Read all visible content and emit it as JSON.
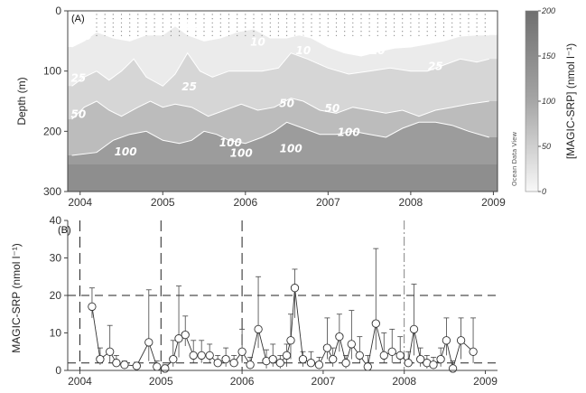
{
  "panel_a": {
    "label": "(A)",
    "ylabel": "Depth (m)",
    "y_ticks": [
      "0",
      "100",
      "200",
      "300"
    ],
    "x_ticks": [
      "2004",
      "2005",
      "2006",
      "2007",
      "2008",
      "2009"
    ],
    "colorbar_label": "[MAGIC-SRP] (nmol l⁻¹)",
    "colorbar_ticks": [
      "200",
      "150",
      "100",
      "50",
      "0"
    ],
    "watermark": "Ocean Data View",
    "colors": {
      "low": "#f7f7f7",
      "high": "#7f7f7f",
      "contour": "#ffffff"
    }
  },
  "panel_b": {
    "label": "(B)",
    "ylabel": "MAGIC-SRP (nmol l⁻¹)",
    "y_ticks": [
      "0",
      "10",
      "20",
      "30",
      "40"
    ],
    "x_ticks": [
      "2004",
      "2005",
      "2006",
      "2007",
      "2008",
      "2009"
    ]
  },
  "chart_data": [
    {
      "type": "heatmap",
      "title": "",
      "xlabel": "",
      "ylabel": "Depth (m)",
      "xlim": [
        2003.85,
        2009.05
      ],
      "ylim": [
        300,
        0
      ],
      "colorbar": {
        "label": "[MAGIC-SRP] (nmol l⁻¹)",
        "range": [
          0,
          200
        ]
      },
      "contour_levels": [
        10,
        25,
        50,
        100
      ],
      "contours": [
        {
          "level": 10,
          "label": "10",
          "points": [
            [
              2003.9,
              60
            ],
            [
              2004.05,
              50
            ],
            [
              2004.2,
              35
            ],
            [
              2004.4,
              45
            ],
            [
              2004.6,
              50
            ],
            [
              2004.8,
              40
            ],
            [
              2005.0,
              40
            ],
            [
              2005.15,
              25
            ],
            [
              2005.3,
              40
            ],
            [
              2005.5,
              50
            ],
            [
              2005.7,
              45
            ],
            [
              2005.9,
              35
            ],
            [
              2006.1,
              30
            ],
            [
              2006.3,
              45
            ],
            [
              2006.5,
              45
            ],
            [
              2006.65,
              40
            ],
            [
              2006.8,
              45
            ],
            [
              2007.0,
              60
            ],
            [
              2007.2,
              70
            ],
            [
              2007.4,
              75
            ],
            [
              2007.6,
              68
            ],
            [
              2007.8,
              62
            ],
            [
              2008.0,
              60
            ],
            [
              2008.2,
              55
            ],
            [
              2008.4,
              50
            ],
            [
              2008.6,
              42
            ],
            [
              2008.8,
              40
            ],
            [
              2008.95,
              40
            ]
          ]
        },
        {
          "level": 25,
          "label": "25",
          "points": [
            [
              2003.9,
              125
            ],
            [
              2004.05,
              110
            ],
            [
              2004.2,
              100
            ],
            [
              2004.35,
              115
            ],
            [
              2004.5,
              100
            ],
            [
              2004.65,
              80
            ],
            [
              2004.8,
              110
            ],
            [
              2005.0,
              125
            ],
            [
              2005.15,
              105
            ],
            [
              2005.3,
              70
            ],
            [
              2005.45,
              100
            ],
            [
              2005.6,
              110
            ],
            [
              2005.8,
              100
            ],
            [
              2006.0,
              100
            ],
            [
              2006.2,
              100
            ],
            [
              2006.4,
              95
            ],
            [
              2006.55,
              70
            ],
            [
              2006.75,
              80
            ],
            [
              2007.0,
              95
            ],
            [
              2007.25,
              105
            ],
            [
              2007.5,
              100
            ],
            [
              2007.75,
              95
            ],
            [
              2008.0,
              100
            ],
            [
              2008.2,
              100
            ],
            [
              2008.4,
              90
            ],
            [
              2008.6,
              80
            ],
            [
              2008.8,
              85
            ],
            [
              2008.95,
              80
            ]
          ]
        },
        {
          "level": 50,
          "label": "50",
          "points": [
            [
              2003.9,
              180
            ],
            [
              2004.05,
              160
            ],
            [
              2004.2,
              150
            ],
            [
              2004.35,
              165
            ],
            [
              2004.5,
              175
            ],
            [
              2004.7,
              160
            ],
            [
              2004.85,
              150
            ],
            [
              2005.0,
              160
            ],
            [
              2005.15,
              155
            ],
            [
              2005.35,
              160
            ],
            [
              2005.55,
              175
            ],
            [
              2005.75,
              165
            ],
            [
              2005.95,
              155
            ],
            [
              2006.15,
              165
            ],
            [
              2006.35,
              160
            ],
            [
              2006.55,
              145
            ],
            [
              2006.7,
              150
            ],
            [
              2006.9,
              165
            ],
            [
              2007.1,
              170
            ],
            [
              2007.3,
              160
            ],
            [
              2007.5,
              165
            ],
            [
              2007.7,
              170
            ],
            [
              2007.9,
              165
            ],
            [
              2008.1,
              175
            ],
            [
              2008.3,
              165
            ],
            [
              2008.5,
              160
            ],
            [
              2008.7,
              155
            ],
            [
              2008.95,
              150
            ]
          ]
        },
        {
          "level": 100,
          "label": "100",
          "points": [
            [
              2003.9,
              240
            ],
            [
              2004.2,
              235
            ],
            [
              2004.4,
              215
            ],
            [
              2004.6,
              205
            ],
            [
              2004.8,
              200
            ],
            [
              2005.0,
              215
            ],
            [
              2005.2,
              220
            ],
            [
              2005.35,
              215
            ],
            [
              2005.5,
              200
            ],
            [
              2005.65,
              205
            ],
            [
              2005.8,
              215
            ],
            [
              2006.0,
              220
            ],
            [
              2006.2,
              210
            ],
            [
              2006.35,
              200
            ],
            [
              2006.5,
              185
            ],
            [
              2006.7,
              195
            ],
            [
              2006.9,
              205
            ],
            [
              2007.1,
              205
            ],
            [
              2007.3,
              200
            ],
            [
              2007.5,
              205
            ],
            [
              2007.7,
              210
            ],
            [
              2007.9,
              195
            ],
            [
              2008.1,
              185
            ],
            [
              2008.3,
              185
            ],
            [
              2008.5,
              190
            ],
            [
              2008.7,
              200
            ],
            [
              2008.95,
              210
            ]
          ]
        }
      ],
      "contour_label_positions": [
        {
          "label": "10",
          "x": 2004.05,
          "y": 48
        },
        {
          "label": "10",
          "x": 2005.35,
          "y": 28
        },
        {
          "label": "10",
          "x": 2006.15,
          "y": 58
        },
        {
          "label": "10",
          "x": 2006.7,
          "y": 72
        },
        {
          "label": "10",
          "x": 2007.6,
          "y": 72
        },
        {
          "label": "25",
          "x": 2003.98,
          "y": 118
        },
        {
          "label": "25",
          "x": 2005.32,
          "y": 132
        },
        {
          "label": "25",
          "x": 2008.3,
          "y": 98
        },
        {
          "label": "50",
          "x": 2003.98,
          "y": 178
        },
        {
          "label": "50",
          "x": 2006.5,
          "y": 160
        },
        {
          "label": "50",
          "x": 2007.05,
          "y": 168
        },
        {
          "label": "100",
          "x": 2004.55,
          "y": 240
        },
        {
          "label": "100",
          "x": 2005.82,
          "y": 225
        },
        {
          "label": "100",
          "x": 2005.95,
          "y": 242
        },
        {
          "label": "100",
          "x": 2006.55,
          "y": 235
        },
        {
          "label": "100",
          "x": 2007.25,
          "y": 208
        }
      ]
    },
    {
      "type": "scatter",
      "title": "",
      "xlabel": "",
      "ylabel": "MAGIC-SRP (nmol l⁻¹)",
      "xlim": [
        2003.85,
        2009.15
      ],
      "ylim": [
        0,
        40
      ],
      "reference_lines": {
        "horizontal_dashed": [
          20,
          2
        ],
        "vertical_dashed": [
          2004.0,
          2005.0,
          2006.0
        ],
        "vertical_dashdot": [
          2008.0
        ]
      },
      "series": [
        {
          "x": [
            2004.15,
            2004.25,
            2004.37,
            2004.45,
            2004.55,
            2004.7,
            2004.85,
            2004.95,
            2005.05,
            2005.15,
            2005.22,
            2005.3,
            2005.4,
            2005.5,
            2005.6,
            2005.7,
            2005.8,
            2005.9,
            2006.0,
            2006.1,
            2006.2,
            2006.3,
            2006.38,
            2006.47,
            2006.55,
            2006.6,
            2006.65,
            2006.75,
            2006.85,
            2006.95,
            2007.05,
            2007.12,
            2007.2,
            2007.28,
            2007.35,
            2007.45,
            2007.55,
            2007.65,
            2007.75,
            2007.85,
            2007.95,
            2008.05,
            2008.12,
            2008.2,
            2008.28,
            2008.36,
            2008.45,
            2008.52,
            2008.6,
            2008.7,
            2008.85
          ],
          "y": [
            17,
            3,
            5,
            2,
            1.5,
            1.2,
            7.5,
            1,
            0.5,
            3,
            8.5,
            9.5,
            4,
            4,
            4,
            2,
            3,
            2,
            5,
            1.5,
            11,
            2.5,
            3,
            2,
            4,
            8,
            22,
            3,
            2,
            1.5,
            6,
            3,
            9,
            2,
            7,
            4,
            1,
            12.5,
            4,
            5,
            4,
            2,
            11,
            3,
            2,
            1.5,
            3,
            8,
            0.5,
            8,
            5
          ],
          "err_low": [
            3,
            1.5,
            3,
            1,
            0.5,
            0.5,
            5,
            0.5,
            0.3,
            2,
            5,
            3,
            2,
            2,
            2,
            1,
            2,
            1,
            3,
            1,
            5,
            2,
            2,
            1.5,
            3,
            5,
            8,
            2,
            1,
            1,
            3,
            2,
            4,
            1.5,
            4,
            2,
            0.5,
            7,
            2,
            3,
            2,
            1,
            7,
            2,
            1.5,
            1,
            2,
            4,
            0.3,
            5,
            3
          ],
          "err_high": [
            5,
            3,
            7,
            2,
            1,
            1,
            14,
            1.5,
            1,
            5,
            14,
            5,
            4,
            4,
            3,
            2,
            3,
            2,
            6,
            2,
            14,
            3,
            4,
            2,
            3,
            7,
            5,
            2,
            3,
            2,
            8,
            3,
            6,
            2,
            9,
            5,
            3,
            20,
            6,
            6,
            5,
            3,
            12,
            3,
            2,
            2,
            3,
            6,
            2,
            6,
            9
          ]
        }
      ]
    }
  ]
}
